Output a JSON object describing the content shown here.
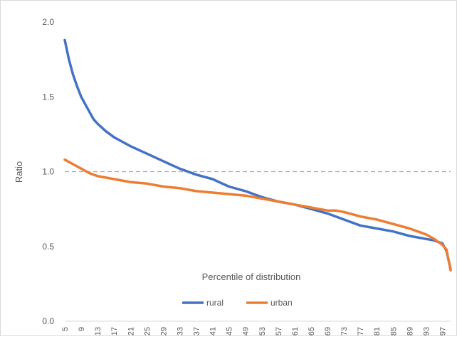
{
  "chart_data": {
    "type": "line",
    "xlabel": "Percentile of distribution",
    "ylabel": "Ratio",
    "ylim": [
      0,
      2.0
    ],
    "yticks": [
      "0.0",
      "0.5",
      "1.0",
      "1.5",
      "2.0"
    ],
    "xlim": [
      5,
      99
    ],
    "xtick_labels": [
      "5",
      "9",
      "13",
      "17",
      "21",
      "25",
      "29",
      "33",
      "37",
      "41",
      "45",
      "49",
      "53",
      "57",
      "61",
      "65",
      "69",
      "73",
      "77",
      "81",
      "85",
      "89",
      "93",
      "97"
    ],
    "reference_line": {
      "y": 1.0,
      "style": "dashed",
      "color": "#8faadc"
    },
    "legend_position": "bottom",
    "grid": false,
    "series": [
      {
        "name": "rural",
        "color": "#4472c4",
        "x": [
          5,
          6,
          7,
          8,
          9,
          10,
          11,
          12,
          13,
          15,
          17,
          19,
          21,
          25,
          29,
          33,
          37,
          41,
          45,
          49,
          53,
          57,
          61,
          65,
          69,
          73,
          77,
          81,
          85,
          89,
          93,
          95,
          97,
          98,
          99
        ],
        "values": [
          1.88,
          1.75,
          1.65,
          1.57,
          1.5,
          1.45,
          1.4,
          1.35,
          1.32,
          1.27,
          1.23,
          1.2,
          1.17,
          1.12,
          1.07,
          1.02,
          0.98,
          0.95,
          0.9,
          0.87,
          0.83,
          0.8,
          0.78,
          0.75,
          0.72,
          0.68,
          0.64,
          0.62,
          0.6,
          0.57,
          0.55,
          0.54,
          0.52,
          0.47,
          0.35
        ]
      },
      {
        "name": "urban",
        "color": "#ed7d31",
        "x": [
          5,
          7,
          9,
          11,
          13,
          15,
          17,
          19,
          21,
          25,
          29,
          33,
          37,
          41,
          45,
          49,
          53,
          57,
          61,
          65,
          69,
          71,
          73,
          77,
          81,
          85,
          89,
          91,
          93,
          95,
          97,
          98,
          99
        ],
        "values": [
          1.08,
          1.05,
          1.02,
          0.99,
          0.97,
          0.96,
          0.95,
          0.94,
          0.93,
          0.92,
          0.9,
          0.89,
          0.87,
          0.86,
          0.85,
          0.84,
          0.82,
          0.8,
          0.78,
          0.76,
          0.74,
          0.74,
          0.73,
          0.7,
          0.68,
          0.65,
          0.62,
          0.6,
          0.58,
          0.55,
          0.51,
          0.48,
          0.34
        ]
      }
    ]
  }
}
